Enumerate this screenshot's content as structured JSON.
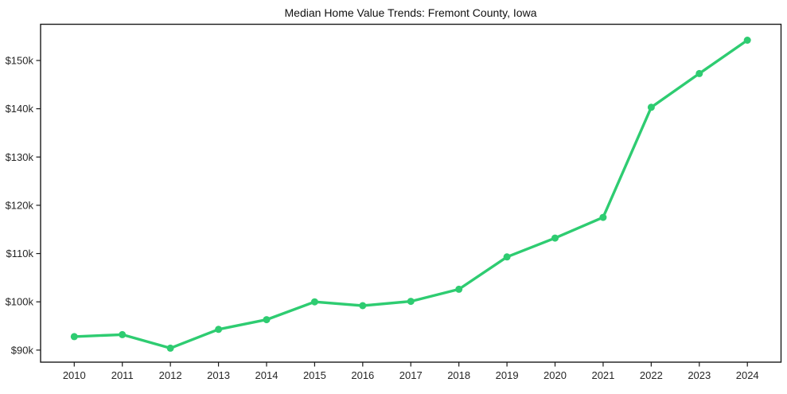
{
  "chart_data": {
    "type": "line",
    "title": "Median Home Value Trends: Fremont County, Iowa",
    "xlabel": "",
    "ylabel": "",
    "x": [
      2010,
      2011,
      2012,
      2013,
      2014,
      2015,
      2016,
      2017,
      2018,
      2019,
      2020,
      2021,
      2022,
      2023,
      2024
    ],
    "series": [
      {
        "name": "Median Home Value",
        "values": [
          92800,
          93200,
          90400,
          94300,
          96300,
          100000,
          99200,
          100100,
          102600,
          109300,
          113200,
          117500,
          140300,
          147300,
          154200
        ],
        "color": "#2ecc71",
        "marker": "circle"
      }
    ],
    "xticks": {
      "values": [
        2010,
        2011,
        2012,
        2013,
        2014,
        2015,
        2016,
        2017,
        2018,
        2019,
        2020,
        2021,
        2022,
        2023,
        2024
      ],
      "labels": [
        "2010",
        "2011",
        "2012",
        "2013",
        "2014",
        "2015",
        "2016",
        "2017",
        "2018",
        "2019",
        "2020",
        "2021",
        "2022",
        "2023",
        "2024"
      ]
    },
    "yticks": {
      "values": [
        90000,
        100000,
        110000,
        120000,
        130000,
        140000,
        150000
      ],
      "labels": [
        "$90k",
        "$100k",
        "$110k",
        "$120k",
        "$130k",
        "$140k",
        "$150k"
      ]
    },
    "xlim": [
      2009.3,
      2024.7
    ],
    "ylim": [
      87500,
      157500
    ],
    "grid": false,
    "legend": false,
    "colors": {
      "background": "#ffffff",
      "axis": "#1a1a1a",
      "tick_label": "#262626",
      "title": "#111111"
    }
  }
}
